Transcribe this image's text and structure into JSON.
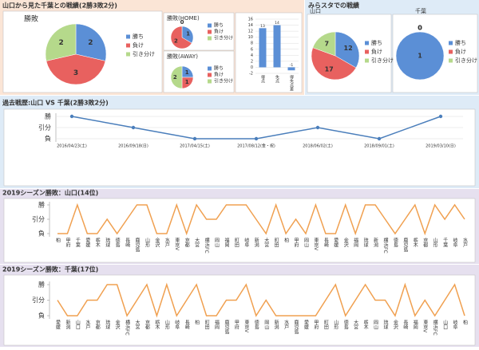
{
  "panels": [
    {
      "title": "山口から見た千葉との戦績(2勝3敗2分)"
    },
    {
      "title": "みらスタでの戦績"
    }
  ],
  "chart_data": [
    {
      "type": "pie",
      "title": "勝敗",
      "categories": [
        "勝ち",
        "負け",
        "引き分け"
      ],
      "values": [
        2,
        3,
        2
      ],
      "colors": [
        "#5b8fd6",
        "#e8615f",
        "#b5d98b"
      ]
    },
    {
      "type": "pie",
      "title": "勝敗(HOME)",
      "categories": [
        "勝ち",
        "負け",
        "引き分け"
      ],
      "values": [
        1,
        2,
        0
      ],
      "colors": [
        "#5b8fd6",
        "#e8615f",
        "#b5d98b"
      ]
    },
    {
      "type": "pie",
      "title": "勝敗(AWAY)",
      "categories": [
        "勝ち",
        "負け",
        "引き分け"
      ],
      "values": [
        1,
        1,
        2
      ],
      "colors": [
        "#5b8fd6",
        "#e8615f",
        "#b5d98b"
      ]
    },
    {
      "type": "bar",
      "categories": [
        "得点",
        "失点",
        "得失点差"
      ],
      "values": [
        13,
        14,
        -1
      ],
      "color": "#5b8fd6",
      "ylim": [
        -2,
        16
      ],
      "yticks": [
        -2,
        0,
        2,
        4,
        6,
        8,
        10,
        12,
        14,
        16
      ],
      "grid": true
    },
    {
      "type": "pie",
      "title": "山口",
      "categories": [
        "勝ち",
        "負け",
        "引き分け"
      ],
      "values": [
        12,
        17,
        7
      ],
      "colors": [
        "#5b8fd6",
        "#e8615f",
        "#b5d98b"
      ]
    },
    {
      "type": "pie",
      "title": "千葉",
      "categories": [
        "勝ち",
        "負け",
        "引き分け"
      ],
      "values": [
        1,
        0,
        0
      ],
      "colors": [
        "#5b8fd6",
        "#e8615f",
        "#b5d98b"
      ]
    },
    {
      "type": "line",
      "title": "過去戦歴:山口 VS 千葉(2勝3敗2分)",
      "categories": [
        "2016/04/23(土)",
        "2016/09/18(日)",
        "2017/04/15(土)",
        "2017/08/12(金・祝)",
        "2018/06/02(土)",
        "2018/09/01(土)",
        "2019/03/10(日)"
      ],
      "values": [
        1,
        0,
        -1,
        -1,
        0,
        -1,
        1
      ],
      "color": "#4a7ebb",
      "markers": true,
      "ylim": [
        -1,
        1
      ],
      "yticks": [
        {
          "value": 1,
          "label": "勝"
        },
        {
          "value": 0,
          "label": "引分"
        },
        {
          "value": -1,
          "label": "負"
        }
      ],
      "grid": true
    },
    {
      "type": "line",
      "title": "2019シーズン勝敗：山口(14位)",
      "categories": [
        "柏",
        "甲府",
        "千葉",
        "愛媛",
        "栃木",
        "琉球",
        "徳島",
        "長崎",
        "鹿児島",
        "山形",
        "金沢",
        "水戸",
        "東京V",
        "京都",
        "大宮",
        "横浜FC",
        "岡山",
        "福岡",
        "町田",
        "岐阜",
        "新潟",
        "大宮",
        "町田",
        "柏",
        "甲府",
        "岡山",
        "東京V",
        "長崎",
        "愛媛",
        "金沢",
        "福岡",
        "琉球",
        "新潟",
        "横浜FC",
        "徳島",
        "鹿児島",
        "栃木",
        "京都",
        "山形",
        "千葉",
        "岐阜",
        "水戸"
      ],
      "values": [
        -1,
        -1,
        1,
        -1,
        -1,
        0,
        -1,
        0,
        1,
        1,
        -1,
        -1,
        1,
        -1,
        1,
        0,
        0,
        1,
        1,
        1,
        0,
        -1,
        1,
        -1,
        0,
        -1,
        1,
        -1,
        -1,
        1,
        -1,
        1,
        1,
        0,
        -1,
        0,
        1,
        -1,
        1,
        0,
        1,
        0
      ],
      "color": "#f0a050",
      "markers": false,
      "ylim": [
        -1,
        1
      ],
      "yticks": [
        {
          "value": 1,
          "label": "勝"
        },
        {
          "value": 0,
          "label": "引分"
        },
        {
          "value": -1,
          "label": "負"
        }
      ],
      "grid": false
    },
    {
      "type": "line",
      "title": "2019シーズン勝敗：千葉(17位)",
      "categories": [
        "愛媛",
        "新潟",
        "山口",
        "水戸",
        "京都",
        "琉球",
        "金沢",
        "横浜FC",
        "大宮",
        "京都",
        "栃木",
        "山形",
        "岐阜",
        "長崎",
        "柏",
        "町田",
        "福岡",
        "鹿児島",
        "甲府",
        "東京V",
        "徳島",
        "岡山",
        "新潟",
        "水戸",
        "鹿児島",
        "愛媛",
        "甲府",
        "町田",
        "山形",
        "徳島",
        "大宮",
        "栃木",
        "岡山",
        "琉球",
        "金沢",
        "長崎",
        "福岡",
        "東京V",
        "横浜FC",
        "山口",
        "岐阜",
        "柏"
      ],
      "values": [
        0,
        -1,
        -1,
        0,
        0,
        1,
        1,
        -1,
        0,
        1,
        -1,
        1,
        -1,
        0,
        1,
        -1,
        -1,
        0,
        0,
        1,
        -1,
        0,
        -1,
        -1,
        -1,
        -1,
        -1,
        0,
        1,
        -1,
        0,
        1,
        0,
        0,
        -1,
        1,
        -1,
        0,
        -1,
        0,
        1,
        -1
      ],
      "color": "#f0a050",
      "markers": false,
      "ylim": [
        -1,
        1
      ],
      "yticks": [
        {
          "value": 1,
          "label": "勝"
        },
        {
          "value": 0,
          "label": "引分"
        },
        {
          "value": -1,
          "label": "負"
        }
      ],
      "grid": false
    }
  ]
}
